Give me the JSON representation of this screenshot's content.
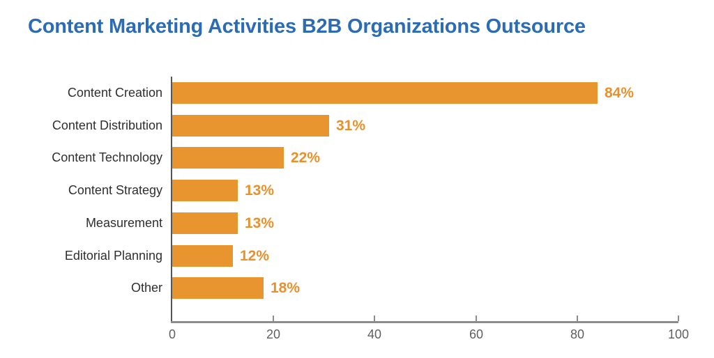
{
  "title": "Content Marketing Activities B2B Organizations Outsource",
  "colors": {
    "background": "#FFFFFF",
    "title": "#2B6CB4",
    "bar": "#E8952F",
    "value_label": "#E8912C",
    "category_label": "#2F2F2F",
    "x_axis_line": "#8C8C8C",
    "y_axis_line": "#555555",
    "tick_label": "#5F5F5F"
  },
  "chart_data": {
    "type": "bar",
    "orientation": "horizontal",
    "title": "Content Marketing Activities B2B Organizations Outsource",
    "categories": [
      "Content Creation",
      "Content Distribution",
      "Content Technology",
      "Content Strategy",
      "Measurement",
      "Editorial Planning",
      "Other"
    ],
    "values": [
      84,
      31,
      22,
      13,
      13,
      12,
      18
    ],
    "value_labels": [
      "84%",
      "31%",
      "22%",
      "13%",
      "13%",
      "12%",
      "18%"
    ],
    "xlabel": "",
    "ylabel": "",
    "xlim": [
      0,
      100
    ],
    "x_ticks": [
      0,
      20,
      40,
      60,
      80,
      100
    ],
    "grid": false,
    "legend": false
  }
}
